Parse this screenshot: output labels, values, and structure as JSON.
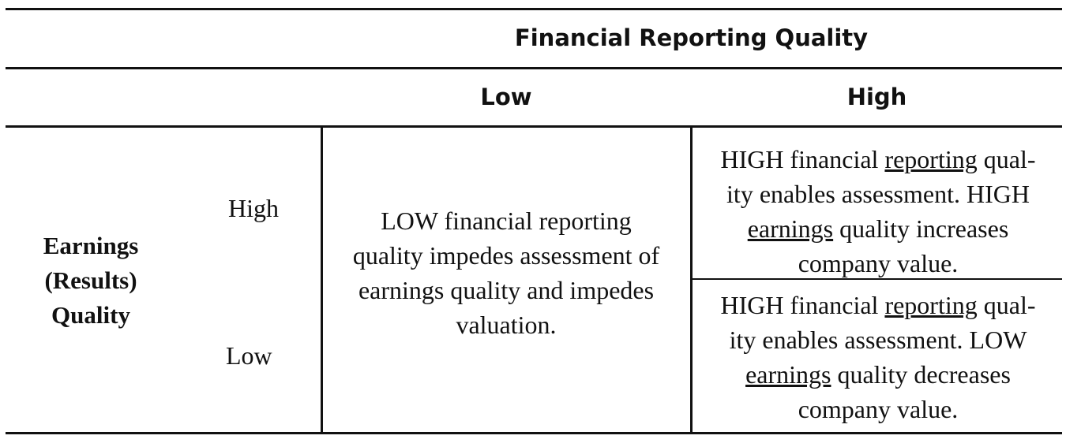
{
  "header": {
    "title": "Financial Reporting Quality",
    "col_low": "Low",
    "col_high": "High"
  },
  "rows": {
    "title_lines": [
      "Earnings",
      "(Results)",
      "Quality"
    ],
    "label_high": "High",
    "label_low": "Low"
  },
  "cells": {
    "low_lines": [
      "LOW financial reporting",
      "quality impedes assessment of",
      "earnings quality and impedes",
      "valuation."
    ],
    "high_high": {
      "l1a": "HIGH financial ",
      "l1u": "reporting",
      "l1b": " qual-",
      "l2": "ity enables assessment. HIGH",
      "l3u": "earnings",
      "l3b": " quality increases",
      "l4": "company value."
    },
    "high_low": {
      "l1a": "HIGH financial ",
      "l1u": "reporting",
      "l1b": " qual-",
      "l2": "ity enables assessment. LOW",
      "l3u": "earnings",
      "l3b": " quality decreases",
      "l4": "company value."
    }
  }
}
